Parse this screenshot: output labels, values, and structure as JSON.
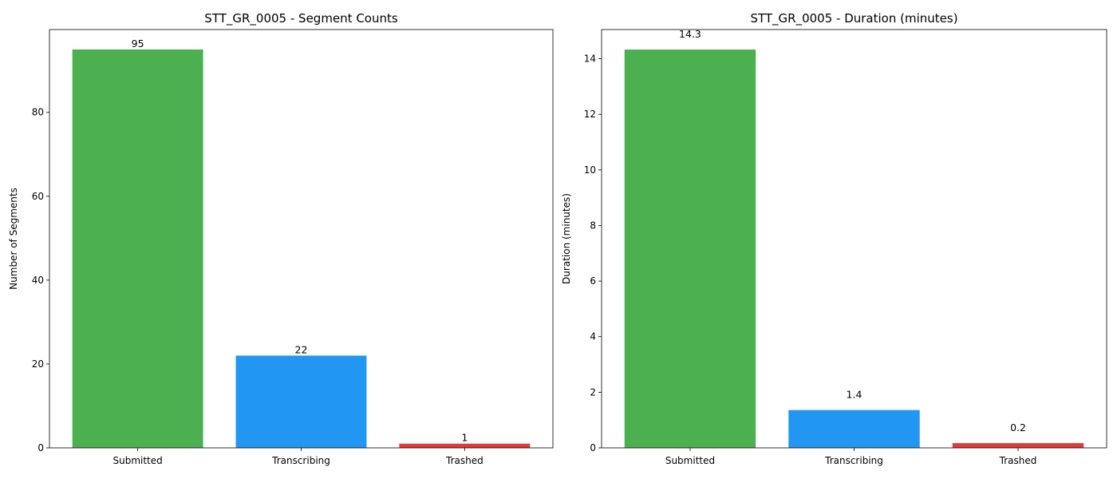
{
  "chart_data": [
    {
      "type": "bar",
      "title": "STT_GR_0005 - Segment Counts",
      "xlabel": "",
      "ylabel": "Number of Segments",
      "categories": [
        "Submitted",
        "Transcribing",
        "Trashed"
      ],
      "values": [
        95,
        22,
        1
      ],
      "value_labels": [
        "95",
        "22",
        "1"
      ],
      "colors": [
        "#4caf50",
        "#2196f3",
        "#e53935"
      ],
      "ylim": [
        0,
        99.75
      ],
      "yticks": [
        0,
        20,
        40,
        60,
        80
      ],
      "grid": false
    },
    {
      "type": "bar",
      "title": "STT_GR_0005 - Duration (minutes)",
      "xlabel": "",
      "ylabel": "Duration (minutes)",
      "categories": [
        "Submitted",
        "Transcribing",
        "Trashed"
      ],
      "values": [
        14.33,
        1.36,
        0.17
      ],
      "value_labels": [
        "14.3",
        "1.4",
        "0.2"
      ],
      "colors": [
        "#4caf50",
        "#2196f3",
        "#e53935"
      ],
      "ylim": [
        0,
        15.05
      ],
      "yticks": [
        0,
        2,
        4,
        6,
        8,
        10,
        12,
        14
      ],
      "grid": false
    }
  ]
}
